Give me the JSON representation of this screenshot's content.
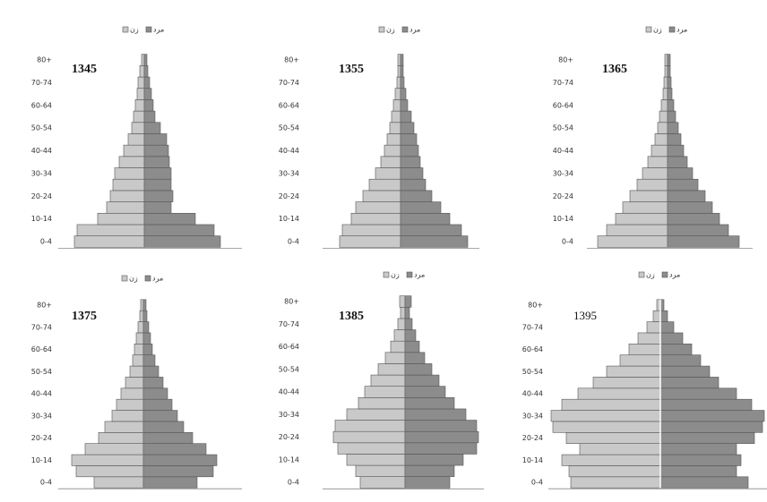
{
  "chart_data": [
    {
      "type": "pyramid",
      "title": "1345",
      "categories": [
        "0-4",
        null,
        "10-14",
        null,
        "20-24",
        null,
        "30-34",
        null,
        "40-44",
        null,
        "50-54",
        null,
        "60-64",
        null,
        "70-74",
        null,
        "80+"
      ],
      "series": [
        {
          "name": "زن",
          "color": "#c9c9c9",
          "side": "left",
          "values": [
            78,
            75,
            52,
            42,
            38,
            35,
            33,
            28,
            23,
            18,
            14,
            12,
            10,
            8,
            7,
            5,
            3
          ]
        },
        {
          "name": "مرد",
          "color": "#8c8c8c",
          "side": "right",
          "values": [
            85,
            78,
            57,
            30,
            32,
            30,
            30,
            28,
            27,
            25,
            18,
            12,
            10,
            8,
            6,
            4,
            3
          ]
        }
      ]
    },
    {
      "type": "pyramid",
      "title": "1355",
      "categories": [
        "0-4",
        null,
        "10-14",
        null,
        "20-24",
        null,
        "30-34",
        null,
        "40-44",
        null,
        "50-54",
        null,
        "60-64",
        null,
        "70-74",
        null,
        "80+"
      ],
      "series": [
        {
          "name": "زن",
          "color": "#c9c9c9",
          "side": "left",
          "values": [
            68,
            65,
            55,
            50,
            42,
            35,
            28,
            22,
            18,
            15,
            12,
            10,
            8,
            6,
            4,
            3,
            3
          ]
        },
        {
          "name": "مرد",
          "color": "#8c8c8c",
          "side": "right",
          "values": [
            75,
            68,
            55,
            45,
            35,
            28,
            25,
            22,
            20,
            18,
            15,
            12,
            8,
            6,
            4,
            3,
            3
          ]
        }
      ]
    },
    {
      "type": "pyramid",
      "title": "1365",
      "categories": [
        "0-4",
        null,
        "10-14",
        null,
        "20-24",
        null,
        "30-34",
        null,
        "40-44",
        null,
        "50-54",
        null,
        "60-64",
        null,
        "70-74",
        null,
        "80+"
      ],
      "series": [
        {
          "name": "زن",
          "color": "#c9c9c9",
          "side": "left",
          "values": [
            78,
            68,
            58,
            50,
            42,
            34,
            28,
            22,
            18,
            14,
            11,
            9,
            7,
            5,
            4,
            3,
            3
          ]
        },
        {
          "name": "مرد",
          "color": "#8c8c8c",
          "side": "right",
          "values": [
            80,
            68,
            58,
            50,
            42,
            34,
            28,
            22,
            18,
            15,
            12,
            9,
            7,
            5,
            4,
            3,
            3
          ]
        }
      ]
    },
    {
      "type": "pyramid",
      "title": "1375",
      "categories": [
        "0-4",
        null,
        "10-14",
        null,
        "20-24",
        null,
        "30-34",
        null,
        "40-44",
        null,
        "50-54",
        null,
        "60-64",
        null,
        "70-74",
        null,
        "80+"
      ],
      "series": [
        {
          "name": "زن",
          "color": "#c9c9c9",
          "side": "left",
          "values": [
            55,
            75,
            80,
            65,
            50,
            43,
            35,
            30,
            25,
            20,
            15,
            12,
            10,
            8,
            6,
            4,
            3
          ]
        },
        {
          "name": "مرد",
          "color": "#8c8c8c",
          "side": "right",
          "values": [
            60,
            78,
            82,
            70,
            55,
            45,
            38,
            32,
            27,
            22,
            17,
            13,
            10,
            8,
            6,
            4,
            3
          ]
        }
      ]
    },
    {
      "type": "pyramid",
      "title": "1385",
      "categories": [
        "0-4",
        null,
        "10-14",
        null,
        "20-24",
        null,
        "30-34",
        null,
        "40-44",
        null,
        "50-54",
        null,
        "60-64",
        null,
        "70-74",
        null,
        "80+"
      ],
      "series": [
        {
          "name": "زن",
          "color": "#c9c9c9",
          "side": "left",
          "values": [
            50,
            55,
            65,
            75,
            80,
            78,
            65,
            52,
            45,
            38,
            30,
            22,
            16,
            12,
            8,
            5,
            6
          ]
        },
        {
          "name": "مرد",
          "color": "#8c8c8c",
          "side": "right",
          "values": [
            50,
            55,
            65,
            80,
            82,
            80,
            68,
            55,
            45,
            38,
            30,
            22,
            16,
            12,
            8,
            5,
            7
          ]
        }
      ]
    },
    {
      "type": "pyramid",
      "title": "1395",
      "categories": [
        "0-4",
        null,
        "10-14",
        null,
        "20-24",
        null,
        "30-34",
        null,
        "40-44",
        null,
        "50-54",
        null,
        "60-64",
        null,
        "70-74",
        null,
        "80+"
      ],
      "series": [
        {
          "name": "زن",
          "color": "#c9c9c9",
          "side": "left",
          "values": [
            100,
            102,
            110,
            90,
            105,
            120,
            122,
            110,
            92,
            75,
            60,
            45,
            35,
            25,
            15,
            8,
            4
          ]
        },
        {
          "name": "مرد",
          "color": "#8c8c8c",
          "side": "right",
          "values": [
            98,
            85,
            90,
            85,
            105,
            114,
            116,
            102,
            85,
            65,
            55,
            45,
            35,
            25,
            15,
            8,
            4
          ]
        }
      ]
    }
  ]
}
